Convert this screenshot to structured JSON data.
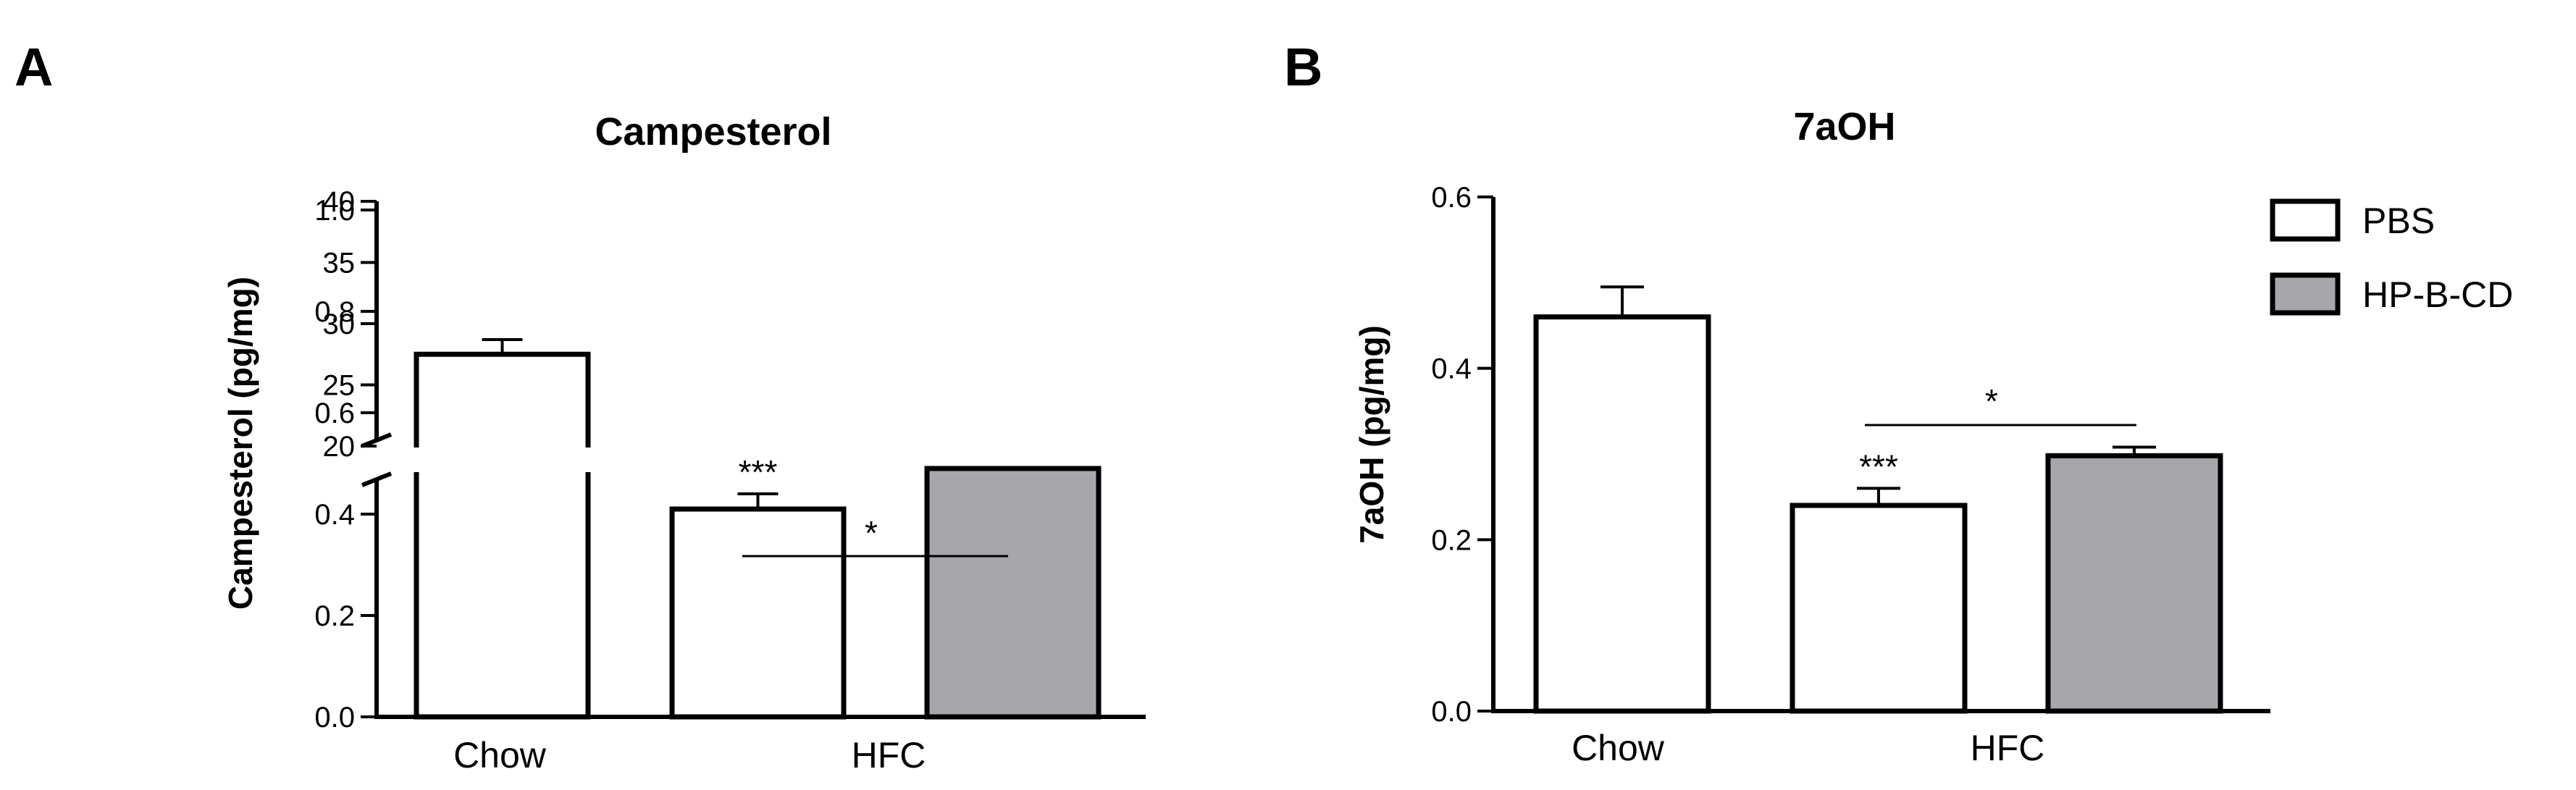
{
  "panels": {
    "a": {
      "letter": "A"
    },
    "b": {
      "letter": "B"
    }
  },
  "legend": {
    "items": [
      {
        "label": "PBS",
        "color": "#ffffff"
      },
      {
        "label": "HP-B-CD",
        "color": "#a7a6aa"
      }
    ]
  },
  "chart_data": [
    {
      "type": "bar",
      "title": "Campesterol",
      "ylabel": "Campesterol (pg/mg)",
      "xlabel": "",
      "categories": [
        "Chow",
        "HFC"
      ],
      "broken_y_axis": true,
      "ylim_lower": [
        0,
        1.0
      ],
      "ylim_upper": [
        20,
        40
      ],
      "yticks_lower": [
        "0.0",
        "0.2",
        "0.4",
        "0.6",
        "0.8",
        "1.0"
      ],
      "yticks_upper": [
        "20",
        "25",
        "30",
        "35",
        "40"
      ],
      "bars": [
        {
          "category": "Chow",
          "series": "PBS",
          "value": 27.5,
          "error": 1.2,
          "color": "#ffffff",
          "annotation": ""
        },
        {
          "category": "HFC",
          "series": "PBS",
          "value": 0.41,
          "error": 0.03,
          "color": "#ffffff",
          "annotation": "***"
        },
        {
          "category": "HFC",
          "series": "HP-B-CD",
          "value": 0.49,
          "error": 0.0,
          "color": "#a7a6aa",
          "annotation": ""
        }
      ],
      "comparisons": [
        {
          "between": [
            "HFC PBS",
            "HFC HP-B-CD"
          ],
          "label": "*"
        }
      ],
      "grid": false
    },
    {
      "type": "bar",
      "title": "7aOH",
      "ylabel": "7aOH (pg/mg)",
      "xlabel": "",
      "categories": [
        "Chow",
        "HFC"
      ],
      "ylim": [
        0,
        0.6
      ],
      "yticks": [
        "0.0",
        "0.2",
        "0.4",
        "0.6"
      ],
      "bars": [
        {
          "category": "Chow",
          "series": "PBS",
          "value": 0.46,
          "error": 0.035,
          "color": "#ffffff",
          "annotation": ""
        },
        {
          "category": "HFC",
          "series": "PBS",
          "value": 0.24,
          "error": 0.02,
          "color": "#ffffff",
          "annotation": "***"
        },
        {
          "category": "HFC",
          "series": "HP-B-CD",
          "value": 0.298,
          "error": 0.01,
          "color": "#a7a6aa",
          "annotation": ""
        }
      ],
      "comparisons": [
        {
          "between": [
            "HFC PBS",
            "HFC HP-B-CD"
          ],
          "label": "*"
        }
      ],
      "legend_position": "top-right",
      "grid": false
    }
  ]
}
